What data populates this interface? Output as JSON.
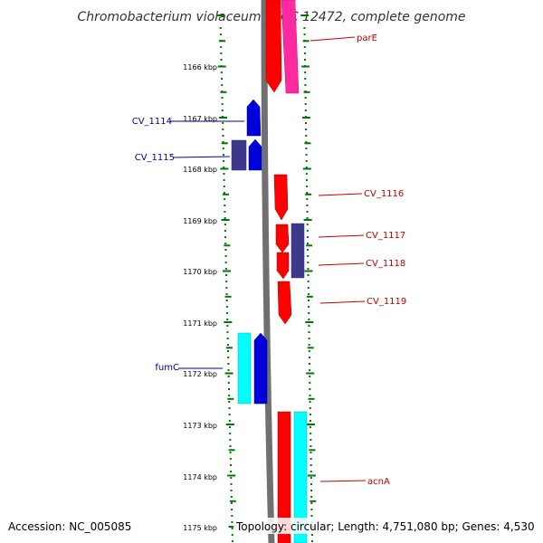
{
  "title": "Chromobacterium violaceum ATCC 12472, complete genome",
  "footer": {
    "accession": "Accession: NC_005085",
    "topology": "Topology: circular; Length: 4,751,080 bp; Genes: 4,530"
  },
  "ticks": [
    "1166 kbp",
    "1167 kbp",
    "1168 kbp",
    "1169 kbp",
    "1170 kbp",
    "1171 kbp",
    "1172 kbp",
    "1173 kbp",
    "1174 kbp",
    "1175 kbp"
  ],
  "colors": {
    "red": "#ff0000",
    "magenta": "#ff2aa0",
    "blue": "#0000dd",
    "slate": "#3d3a8c",
    "cyan": "#00ffff",
    "axis": "#707070",
    "tick": "#007700",
    "left_label": "#00009c",
    "right_label": "#c00000"
  },
  "genes": {
    "left": [
      "CV_1114",
      "CV_1115",
      "fumC"
    ],
    "right": [
      "parE",
      "CV_1116",
      "CV_1117",
      "CV_1118",
      "CV_1119",
      "acnA"
    ]
  }
}
